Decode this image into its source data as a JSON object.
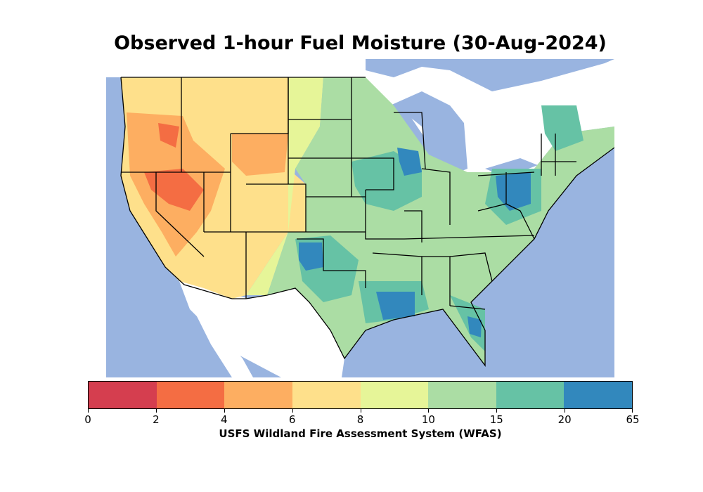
{
  "title": "Observed 1-hour Fuel Moisture (30-Aug-2024)",
  "colorbar": {
    "label": "USFS Wildland Fire Assessment System (WFAS)",
    "ticks": [
      "0",
      "2",
      "4",
      "6",
      "8",
      "10",
      "15",
      "20",
      "65"
    ],
    "classes": [
      {
        "range": "0-2",
        "color": "#d53e4f"
      },
      {
        "range": "2-4",
        "color": "#f46d43"
      },
      {
        "range": "4-6",
        "color": "#fdae61"
      },
      {
        "range": "6-8",
        "color": "#fee08b"
      },
      {
        "range": "8-10",
        "color": "#e6f598"
      },
      {
        "range": "10-15",
        "color": "#abdda4"
      },
      {
        "range": "15-20",
        "color": "#66c2a5"
      },
      {
        "range": "20-65",
        "color": "#3288bd"
      }
    ]
  },
  "colors": {
    "water": "#99b4e0",
    "boundary": "#000000"
  }
}
